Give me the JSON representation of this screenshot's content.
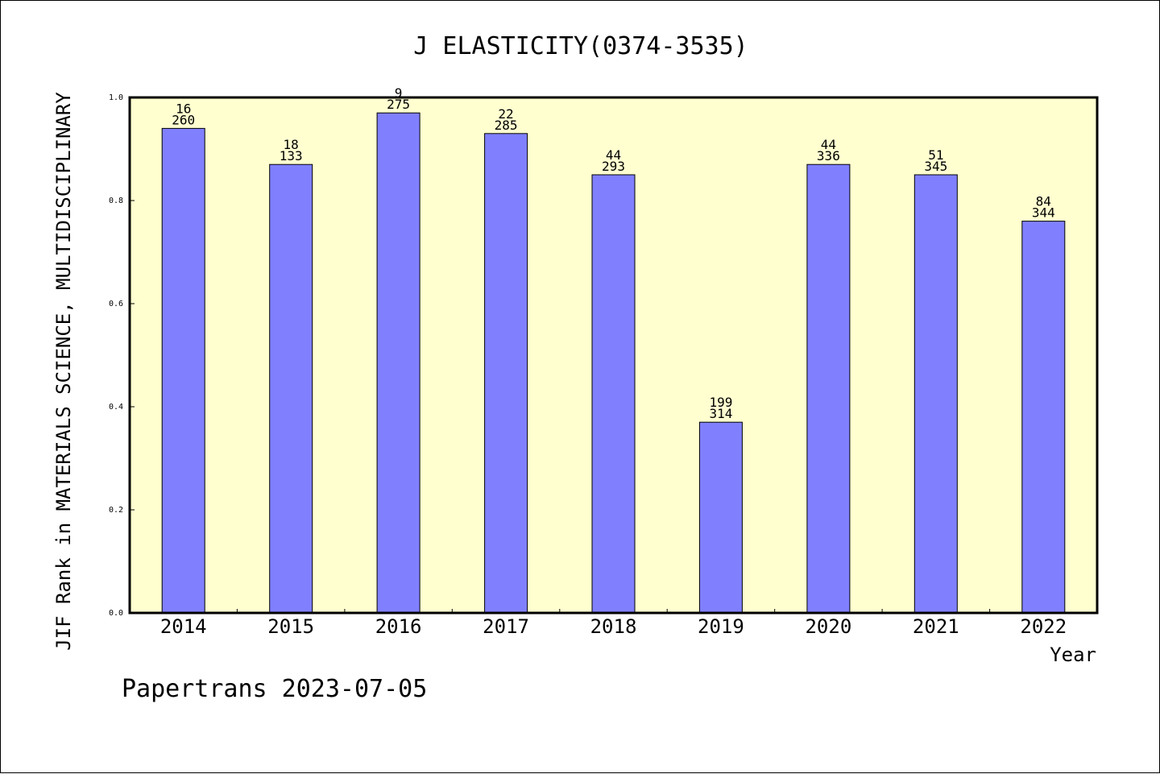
{
  "chart_data": {
    "type": "bar",
    "title": "J ELASTICITY(0374-3535)",
    "xlabel": "Year",
    "ylabel": "JIF Rank in MATERIALS SCIENCE, MULTIDISCIPLINARY",
    "ylim": [
      0,
      1.0
    ],
    "y_ticks": [
      "0.0",
      "0.2",
      "0.4",
      "0.6",
      "0.8",
      "1.0"
    ],
    "categories": [
      "2014",
      "2015",
      "2016",
      "2017",
      "2018",
      "2019",
      "2020",
      "2021",
      "2022"
    ],
    "values": [
      0.94,
      0.87,
      0.97,
      0.93,
      0.85,
      0.37,
      0.87,
      0.85,
      0.76
    ],
    "rank": [
      "16",
      "18",
      "9",
      "22",
      "44",
      "199",
      "44",
      "51",
      "84"
    ],
    "total": [
      "260",
      "133",
      "275",
      "285",
      "293",
      "314",
      "336",
      "345",
      "344"
    ],
    "grid": false,
    "footer": "Papertrans 2023-07-05",
    "colors": {
      "bar_fill": "#8080ff",
      "bar_stroke": "#000000",
      "plot_bg": "#ffffd0",
      "page_bg": "#ffffff"
    }
  }
}
